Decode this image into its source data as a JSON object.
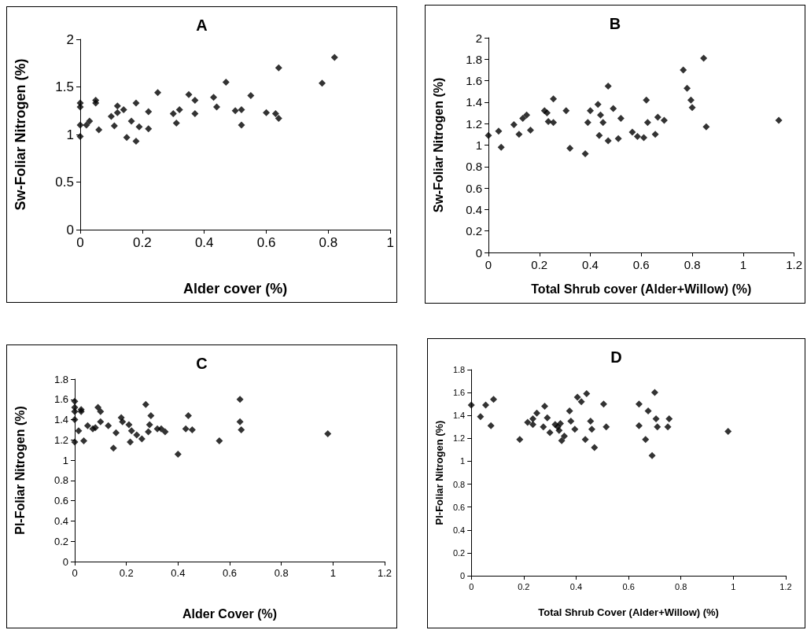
{
  "chart_data": [
    {
      "type": "scatter",
      "title": "A",
      "xlabel": "Alder cover (%)",
      "ylabel": "Sw-Foliar Nitrogen (%)",
      "color": "#000000",
      "marker": "diamond",
      "x": [
        0,
        0,
        0,
        0,
        0.02,
        0.03,
        0.05,
        0.05,
        0.06,
        0.1,
        0.11,
        0.12,
        0.12,
        0.14,
        0.15,
        0.165,
        0.18,
        0.18,
        0.19,
        0.22,
        0.22,
        0.25,
        0.3,
        0.31,
        0.32,
        0.35,
        0.37,
        0.37,
        0.43,
        0.44,
        0.47,
        0.5,
        0.52,
        0.52,
        0.55,
        0.6,
        0.63,
        0.64,
        0.64,
        0.78,
        0.82
      ],
      "values": [
        1.33,
        1.29,
        1.1,
        0.98,
        1.1,
        1.14,
        1.36,
        1.33,
        1.05,
        1.19,
        1.09,
        1.3,
        1.23,
        1.26,
        0.97,
        1.14,
        1.33,
        0.93,
        1.08,
        1.24,
        1.06,
        1.44,
        1.22,
        1.12,
        1.26,
        1.42,
        1.36,
        1.22,
        1.39,
        1.29,
        1.55,
        1.25,
        1.26,
        1.1,
        1.41,
        1.23,
        1.22,
        1.17,
        1.7,
        1.54,
        1.81
      ],
      "xlim": [
        0,
        1
      ],
      "xticks": [
        0,
        0.2,
        0.4,
        0.6,
        0.8,
        1
      ],
      "ylim": [
        0,
        2
      ],
      "yticks": [
        0,
        0.5,
        1,
        1.5,
        2
      ]
    },
    {
      "type": "scatter",
      "title": "B",
      "xlabel": "Total Shrub cover (Alder+Willow) (%)",
      "ylabel": "Sw-Foliar Nitrogen (%)",
      "color": "#000000",
      "marker": "diamond",
      "x": [
        0,
        0.04,
        0.05,
        0.1,
        0.12,
        0.135,
        0.15,
        0.165,
        0.22,
        0.23,
        0.235,
        0.255,
        0.255,
        0.305,
        0.32,
        0.38,
        0.39,
        0.4,
        0.43,
        0.435,
        0.44,
        0.45,
        0.47,
        0.47,
        0.49,
        0.51,
        0.52,
        0.565,
        0.585,
        0.61,
        0.62,
        0.625,
        0.655,
        0.665,
        0.69,
        0.765,
        0.78,
        0.795,
        0.8,
        0.845,
        0.855,
        1.14
      ],
      "values": [
        1.09,
        1.13,
        0.98,
        1.19,
        1.1,
        1.25,
        1.28,
        1.14,
        1.32,
        1.3,
        1.22,
        1.43,
        1.21,
        1.32,
        0.97,
        0.92,
        1.21,
        1.32,
        1.38,
        1.09,
        1.28,
        1.21,
        1.55,
        1.04,
        1.34,
        1.06,
        1.25,
        1.12,
        1.08,
        1.07,
        1.42,
        1.21,
        1.1,
        1.26,
        1.23,
        1.7,
        1.53,
        1.42,
        1.35,
        1.81,
        1.17,
        1.23
      ],
      "xlim": [
        0,
        1.2
      ],
      "xticks": [
        0,
        0.2,
        0.4,
        0.6,
        0.8,
        1,
        1.2
      ],
      "ylim": [
        0,
        2
      ],
      "yticks": [
        0,
        0.2,
        0.4,
        0.6,
        0.8,
        1,
        1.2,
        1.4,
        1.6,
        1.8,
        2
      ]
    },
    {
      "type": "scatter",
      "title": "C",
      "xlabel": "Alder Cover (%)",
      "ylabel": "Pl-Foliar Nitrogen (%)",
      "color": "#000000",
      "marker": "diamond",
      "x": [
        0,
        0,
        0,
        0,
        0,
        0.015,
        0.025,
        0.025,
        0.035,
        0.05,
        0.07,
        0.08,
        0.09,
        0.1,
        0.1,
        0.13,
        0.15,
        0.16,
        0.18,
        0.185,
        0.21,
        0.215,
        0.22,
        0.24,
        0.26,
        0.275,
        0.285,
        0.29,
        0.295,
        0.32,
        0.335,
        0.35,
        0.4,
        0.43,
        0.44,
        0.455,
        0.56,
        0.64,
        0.64,
        0.645,
        0.98
      ],
      "values": [
        1.58,
        1.52,
        1.48,
        1.4,
        1.18,
        1.29,
        1.48,
        1.5,
        1.19,
        1.34,
        1.31,
        1.32,
        1.52,
        1.48,
        1.38,
        1.34,
        1.12,
        1.27,
        1.42,
        1.38,
        1.35,
        1.18,
        1.29,
        1.25,
        1.21,
        1.55,
        1.28,
        1.35,
        1.44,
        1.31,
        1.31,
        1.28,
        1.06,
        1.31,
        1.44,
        1.3,
        1.19,
        1.6,
        1.38,
        1.3,
        1.26
      ],
      "xlim": [
        0,
        1.2
      ],
      "xticks": [
        0,
        0.2,
        0.4,
        0.6,
        0.8,
        1,
        1.2
      ],
      "ylim": [
        0,
        1.8
      ],
      "yticks": [
        0,
        0.2,
        0.4,
        0.6,
        0.8,
        1,
        1.2,
        1.4,
        1.6,
        1.8
      ]
    },
    {
      "type": "scatter",
      "title": "D",
      "xlabel": "Total Shrub Cover (Alder+Willow) (%)",
      "ylabel": "Pl-Foliar Nitrogen (%)",
      "color": "#000000",
      "marker": "diamond",
      "x": [
        0,
        0.035,
        0.055,
        0.075,
        0.085,
        0.185,
        0.215,
        0.235,
        0.235,
        0.25,
        0.275,
        0.28,
        0.29,
        0.3,
        0.32,
        0.33,
        0.335,
        0.34,
        0.345,
        0.355,
        0.375,
        0.38,
        0.395,
        0.405,
        0.42,
        0.435,
        0.44,
        0.455,
        0.46,
        0.47,
        0.505,
        0.515,
        0.64,
        0.64,
        0.665,
        0.675,
        0.69,
        0.7,
        0.705,
        0.71,
        0.75,
        0.755,
        0.98
      ],
      "values": [
        1.49,
        1.39,
        1.49,
        1.31,
        1.54,
        1.19,
        1.34,
        1.37,
        1.32,
        1.42,
        1.3,
        1.48,
        1.38,
        1.25,
        1.32,
        1.3,
        1.27,
        1.33,
        1.18,
        1.22,
        1.44,
        1.35,
        1.28,
        1.56,
        1.52,
        1.19,
        1.59,
        1.35,
        1.28,
        1.12,
        1.5,
        1.3,
        1.5,
        1.31,
        1.19,
        1.44,
        1.05,
        1.6,
        1.37,
        1.3,
        1.3,
        1.37,
        1.26
      ],
      "xlim": [
        0,
        1.2
      ],
      "xticks": [
        0,
        0.2,
        0.4,
        0.6,
        0.8,
        1,
        1.2
      ],
      "ylim": [
        0,
        1.8
      ],
      "yticks": [
        0,
        0.2,
        0.4,
        0.6,
        0.8,
        1,
        1.2,
        1.4,
        1.6,
        1.8
      ]
    }
  ]
}
